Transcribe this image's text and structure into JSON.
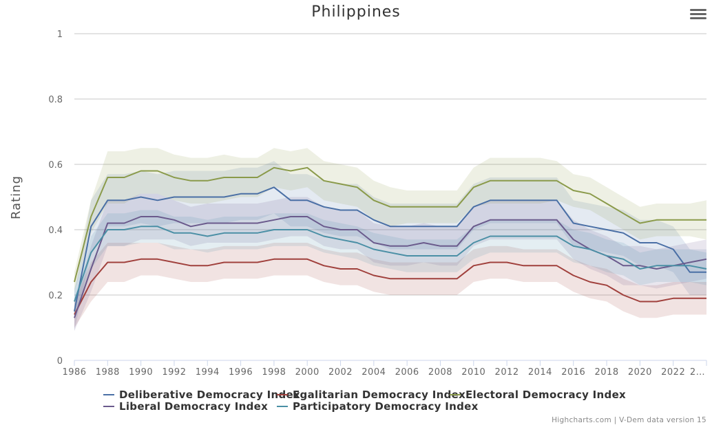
{
  "chart_data": {
    "type": "line",
    "title": "Philippines",
    "xlabel": "",
    "ylabel": "Rating",
    "ylim": [
      0,
      1
    ],
    "yticks": [
      "0",
      "0.2",
      "0.4",
      "0.6",
      "0.8",
      "1"
    ],
    "xlim": [
      1986,
      2024
    ],
    "xticks": [
      "1986",
      "1988",
      "1990",
      "1992",
      "1994",
      "1996",
      "1998",
      "2000",
      "2002",
      "2004",
      "2006",
      "2008",
      "2010",
      "2012",
      "2014",
      "2016",
      "2018",
      "2020",
      "2022",
      "2…"
    ],
    "x": [
      1986,
      1987,
      1988,
      1989,
      1990,
      1991,
      1992,
      1993,
      1994,
      1995,
      1996,
      1997,
      1998,
      1999,
      2000,
      2001,
      2002,
      2003,
      2004,
      2005,
      2006,
      2007,
      2008,
      2009,
      2010,
      2011,
      2012,
      2013,
      2014,
      2015,
      2016,
      2017,
      2018,
      2019,
      2020,
      2021,
      2022,
      2023,
      2024
    ],
    "series": [
      {
        "name": "Deliberative Democracy Index",
        "color": "#4a6fa5",
        "values": [
          0.15,
          0.41,
          0.49,
          0.49,
          0.5,
          0.49,
          0.5,
          0.5,
          0.5,
          0.5,
          0.51,
          0.51,
          0.53,
          0.49,
          0.49,
          0.47,
          0.46,
          0.46,
          0.43,
          0.41,
          0.41,
          0.41,
          0.41,
          0.41,
          0.47,
          0.49,
          0.49,
          0.49,
          0.49,
          0.49,
          0.42,
          0.41,
          0.4,
          0.39,
          0.36,
          0.36,
          0.34,
          0.27,
          0.27
        ],
        "band": [
          0.06,
          0.08,
          0.08,
          0.08,
          0.08,
          0.08,
          0.08,
          0.08,
          0.08,
          0.08,
          0.08,
          0.08,
          0.08,
          0.08,
          0.08,
          0.08,
          0.08,
          0.08,
          0.07,
          0.07,
          0.07,
          0.07,
          0.07,
          0.07,
          0.07,
          0.07,
          0.07,
          0.07,
          0.07,
          0.07,
          0.07,
          0.07,
          0.07,
          0.07,
          0.07,
          0.07,
          0.07,
          0.07,
          0.07
        ]
      },
      {
        "name": "Egalitarian Democracy Index",
        "color": "#a0403c",
        "values": [
          0.14,
          0.24,
          0.3,
          0.3,
          0.31,
          0.31,
          0.3,
          0.29,
          0.29,
          0.3,
          0.3,
          0.3,
          0.31,
          0.31,
          0.31,
          0.29,
          0.28,
          0.28,
          0.26,
          0.25,
          0.25,
          0.25,
          0.25,
          0.25,
          0.29,
          0.3,
          0.3,
          0.29,
          0.29,
          0.29,
          0.26,
          0.24,
          0.23,
          0.2,
          0.18,
          0.18,
          0.19,
          0.19,
          0.19
        ],
        "band": [
          0.04,
          0.06,
          0.06,
          0.06,
          0.05,
          0.05,
          0.05,
          0.05,
          0.05,
          0.05,
          0.05,
          0.05,
          0.05,
          0.05,
          0.05,
          0.05,
          0.05,
          0.05,
          0.05,
          0.05,
          0.05,
          0.05,
          0.05,
          0.05,
          0.05,
          0.05,
          0.05,
          0.05,
          0.05,
          0.05,
          0.05,
          0.05,
          0.05,
          0.05,
          0.05,
          0.05,
          0.05,
          0.05,
          0.05
        ]
      },
      {
        "name": "Electoral Democracy Index",
        "color": "#8a9a4a",
        "values": [
          0.24,
          0.44,
          0.56,
          0.56,
          0.58,
          0.58,
          0.56,
          0.55,
          0.55,
          0.56,
          0.56,
          0.56,
          0.59,
          0.58,
          0.59,
          0.55,
          0.54,
          0.53,
          0.49,
          0.47,
          0.47,
          0.47,
          0.47,
          0.47,
          0.53,
          0.55,
          0.55,
          0.55,
          0.55,
          0.55,
          0.52,
          0.51,
          0.48,
          0.45,
          0.42,
          0.43,
          0.43,
          0.43,
          0.43
        ],
        "band": [
          0.03,
          0.05,
          0.08,
          0.08,
          0.07,
          0.07,
          0.07,
          0.07,
          0.07,
          0.07,
          0.06,
          0.06,
          0.06,
          0.06,
          0.06,
          0.06,
          0.06,
          0.06,
          0.06,
          0.06,
          0.05,
          0.05,
          0.05,
          0.05,
          0.06,
          0.07,
          0.07,
          0.07,
          0.07,
          0.06,
          0.05,
          0.05,
          0.05,
          0.05,
          0.05,
          0.05,
          0.05,
          0.05,
          0.06
        ]
      },
      {
        "name": "Liberal Democracy Index",
        "color": "#6a5a8c",
        "values": [
          0.13,
          0.28,
          0.42,
          0.42,
          0.44,
          0.44,
          0.43,
          0.41,
          0.42,
          0.42,
          0.42,
          0.42,
          0.43,
          0.44,
          0.44,
          0.41,
          0.4,
          0.4,
          0.36,
          0.35,
          0.35,
          0.36,
          0.35,
          0.35,
          0.41,
          0.43,
          0.43,
          0.43,
          0.43,
          0.43,
          0.37,
          0.34,
          0.32,
          0.29,
          0.29,
          0.28,
          0.29,
          0.3,
          0.31
        ],
        "band": [
          0.04,
          0.07,
          0.07,
          0.07,
          0.07,
          0.07,
          0.06,
          0.06,
          0.06,
          0.06,
          0.06,
          0.06,
          0.06,
          0.06,
          0.06,
          0.06,
          0.06,
          0.06,
          0.06,
          0.06,
          0.06,
          0.06,
          0.06,
          0.06,
          0.06,
          0.06,
          0.06,
          0.06,
          0.06,
          0.06,
          0.06,
          0.06,
          0.06,
          0.06,
          0.06,
          0.06,
          0.06,
          0.06,
          0.06
        ]
      },
      {
        "name": "Participatory Democracy Index",
        "color": "#4a8fa5",
        "values": [
          0.18,
          0.33,
          0.4,
          0.4,
          0.41,
          0.41,
          0.39,
          0.39,
          0.38,
          0.39,
          0.39,
          0.39,
          0.4,
          0.4,
          0.4,
          0.38,
          0.37,
          0.36,
          0.34,
          0.33,
          0.32,
          0.32,
          0.32,
          0.32,
          0.36,
          0.38,
          0.38,
          0.38,
          0.38,
          0.38,
          0.35,
          0.34,
          0.32,
          0.31,
          0.28,
          0.29,
          0.29,
          0.29,
          0.28
        ],
        "band": [
          0.04,
          0.05,
          0.05,
          0.05,
          0.05,
          0.05,
          0.05,
          0.05,
          0.05,
          0.05,
          0.05,
          0.05,
          0.05,
          0.05,
          0.05,
          0.05,
          0.05,
          0.05,
          0.05,
          0.05,
          0.05,
          0.05,
          0.05,
          0.05,
          0.05,
          0.05,
          0.05,
          0.05,
          0.05,
          0.05,
          0.05,
          0.05,
          0.05,
          0.05,
          0.05,
          0.05,
          0.05,
          0.05,
          0.05
        ]
      }
    ],
    "legend_position": "bottom",
    "grid": true
  },
  "credits": "Highcharts.com | V-Dem data version 15"
}
